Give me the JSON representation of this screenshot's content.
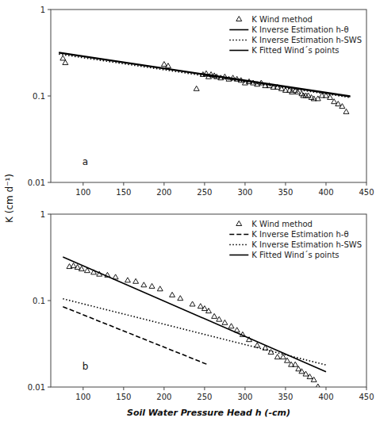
{
  "chart_data": [
    {
      "type": "scatter",
      "log": "y",
      "grid": false,
      "legend": "upper right",
      "ylabel": "K (cm d⁻¹)",
      "annotations": [
        "a"
      ],
      "xlim": [
        60,
        450
      ],
      "ylim": [
        0.01,
        1.0
      ],
      "xticks": [
        100,
        150,
        200,
        250,
        300,
        350,
        400,
        450
      ],
      "yticks": [
        0.01,
        0.1,
        1
      ],
      "series": [
        {
          "name": "K Wind method",
          "type": "scatter",
          "marker": "triangle",
          "color": "#000000",
          "x": [
            75,
            78,
            200,
            205,
            240,
            248,
            252,
            255,
            258,
            262,
            265,
            270,
            275,
            280,
            285,
            290,
            295,
            300,
            305,
            310,
            315,
            320,
            325,
            330,
            335,
            340,
            345,
            350,
            355,
            358,
            362,
            365,
            370,
            372,
            375,
            378,
            382,
            385,
            390,
            395,
            400,
            405,
            410,
            415,
            420,
            425
          ],
          "values": [
            0.27,
            0.24,
            0.23,
            0.22,
            0.12,
            0.175,
            0.18,
            0.165,
            0.175,
            0.17,
            0.165,
            0.16,
            0.165,
            0.155,
            0.16,
            0.155,
            0.15,
            0.14,
            0.145,
            0.14,
            0.135,
            0.14,
            0.13,
            0.13,
            0.125,
            0.125,
            0.12,
            0.115,
            0.115,
            0.11,
            0.115,
            0.11,
            0.105,
            0.1,
            0.1,
            0.1,
            0.095,
            0.092,
            0.092,
            0.1,
            0.1,
            0.095,
            0.085,
            0.08,
            0.075,
            0.065
          ]
        },
        {
          "name": "K Inverse Estimation h-θ",
          "type": "line",
          "line_style": "solid",
          "color": "#000000",
          "x": [
            70,
            430
          ],
          "values": [
            0.315,
            0.098
          ]
        },
        {
          "name": "K Inverse Estimation h-SWS",
          "type": "line",
          "line_style": "dotted",
          "color": "#000000",
          "x": [
            70,
            430
          ],
          "values": [
            0.305,
            0.096
          ]
        },
        {
          "name": "K Fitted Wind´s points",
          "type": "line",
          "line_style": "solid",
          "color": "#000000",
          "x": [
            70,
            430
          ],
          "values": [
            0.32,
            0.1
          ]
        }
      ]
    },
    {
      "type": "scatter",
      "log": "y",
      "grid": false,
      "legend": "upper right",
      "xlabel": "Soil Water Pressure Head h (-cm)",
      "annotations": [
        "b"
      ],
      "xlim": [
        60,
        450
      ],
      "ylim": [
        0.01,
        1.0
      ],
      "xticks": [
        100,
        150,
        200,
        250,
        300,
        350,
        400,
        450
      ],
      "yticks": [
        0.01,
        0.1,
        1
      ],
      "series": [
        {
          "name": "K Wind method",
          "type": "scatter",
          "marker": "triangle",
          "color": "#000000",
          "x": [
            83,
            88,
            93,
            98,
            105,
            113,
            120,
            130,
            140,
            155,
            165,
            175,
            185,
            195,
            210,
            220,
            235,
            245,
            250,
            255,
            262,
            268,
            275,
            283,
            290,
            297,
            305,
            315,
            325,
            332,
            340,
            347,
            352,
            357,
            362,
            366,
            370,
            375,
            380,
            385,
            390
          ],
          "values": [
            0.245,
            0.25,
            0.24,
            0.23,
            0.22,
            0.21,
            0.2,
            0.195,
            0.185,
            0.17,
            0.165,
            0.15,
            0.145,
            0.135,
            0.115,
            0.105,
            0.09,
            0.085,
            0.08,
            0.075,
            0.065,
            0.06,
            0.055,
            0.05,
            0.045,
            0.04,
            0.035,
            0.03,
            0.028,
            0.025,
            0.022,
            0.022,
            0.02,
            0.018,
            0.018,
            0.016,
            0.015,
            0.014,
            0.013,
            0.012,
            0.01
          ]
        },
        {
          "name": "K Inverse Estimation h-θ",
          "type": "line",
          "line_style": "dashed",
          "color": "#000000",
          "x": [
            75,
            255
          ],
          "values": [
            0.085,
            0.018
          ]
        },
        {
          "name": "K Inverse Estimation h-SWS",
          "type": "line",
          "line_style": "dotted",
          "color": "#000000",
          "x": [
            75,
            400
          ],
          "values": [
            0.105,
            0.018
          ]
        },
        {
          "name": "K Fitted Wind´s points",
          "type": "line",
          "line_style": "solid",
          "color": "#000000",
          "x": [
            75,
            400
          ],
          "values": [
            0.32,
            0.015
          ]
        }
      ]
    }
  ]
}
